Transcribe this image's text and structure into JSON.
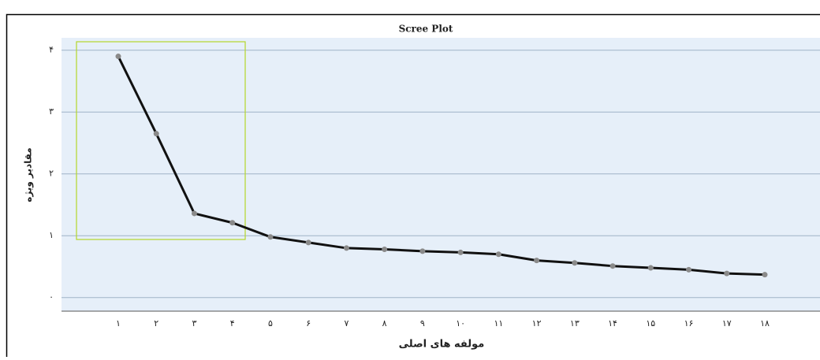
{
  "chart_data": {
    "type": "line",
    "title": "Scree Plot",
    "x_label": "مولفه های اصلی",
    "y_label": "مقادیر ویژه",
    "categories": [
      "۱",
      "۲",
      "۳",
      "۴",
      "۵",
      "۶",
      "۷",
      "۸",
      "۹",
      "۱۰",
      "۱۱",
      "۱۲",
      "۱۳",
      "۱۴",
      "۱۵",
      "۱۶",
      "۱۷",
      "۱۸"
    ],
    "series": [
      {
        "color": "#111111",
        "marker_color": "#8a8a8a",
        "values": [
          3.9,
          2.65,
          1.36,
          1.21,
          0.98,
          0.89,
          0.8,
          0.78,
          0.75,
          0.73,
          0.7,
          0.6,
          0.56,
          0.51,
          0.48,
          0.45,
          0.39,
          0.37
        ]
      }
    ],
    "ylim": [
      -0.22,
      4.2
    ],
    "yticks": [
      {
        "value": 0,
        "label": "۰"
      },
      {
        "value": 1,
        "label": "۱"
      },
      {
        "value": 2,
        "label": "۲"
      },
      {
        "value": 3,
        "label": "۳"
      },
      {
        "value": 4,
        "label": "۴"
      }
    ],
    "grid": true
  }
}
